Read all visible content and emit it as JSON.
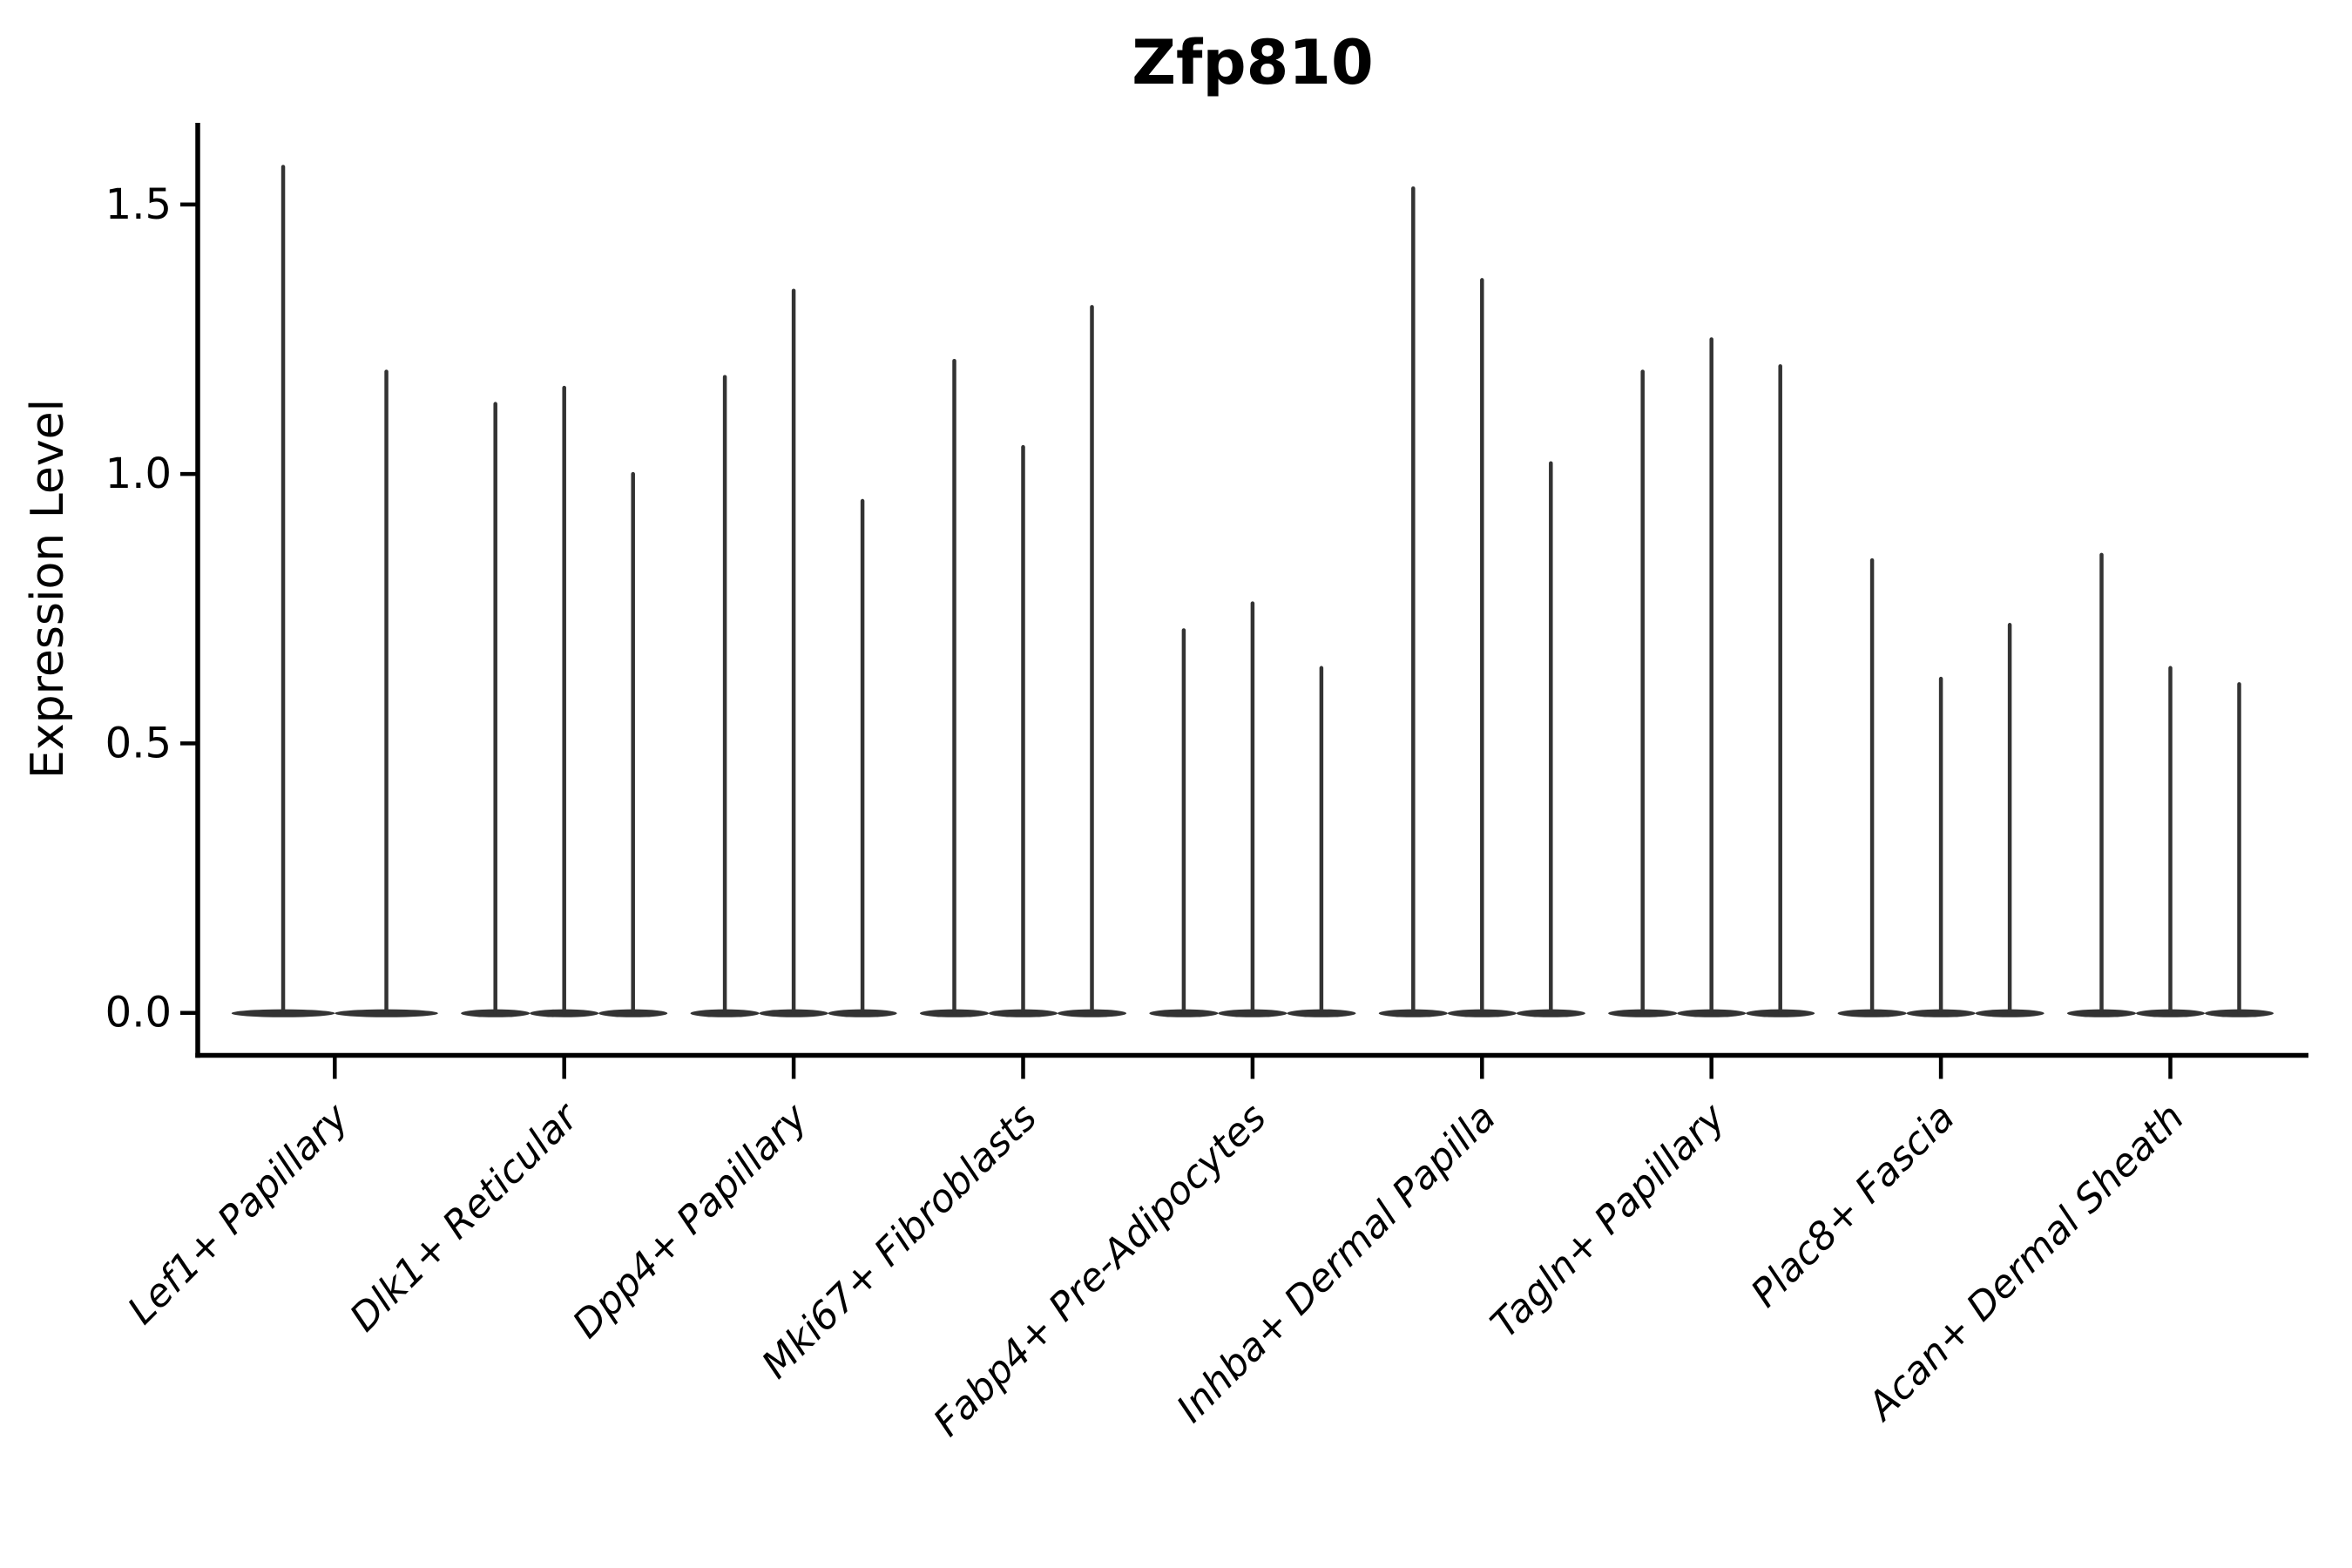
{
  "chart_data": {
    "type": "violin",
    "title": "Zfp810",
    "xlabel": "",
    "ylabel": "Expression Level",
    "yticks": [
      0.0,
      0.5,
      1.0,
      1.5
    ],
    "ytick_labels": [
      "0.0",
      "0.5",
      "1.0",
      "1.5"
    ],
    "ylim": [
      -0.08,
      1.66
    ],
    "grid": false,
    "legend_position": "none",
    "categories": [
      "Lef1+ Papillary",
      "Dlk1+ Reticular",
      "Dpp4+ Papillary",
      "Mki67+ Fibroblasts",
      "Fabp4+ Pre-Adipocytes",
      "Inhba+ Dermal Papilla",
      "Tagln+ Papillary",
      "Plac8+ Fascia",
      "Acan+ Dermal Sheath"
    ],
    "groups": [
      {
        "category": "Lef1+ Papillary",
        "violin_max_values": [
          1.57,
          1.19
        ]
      },
      {
        "category": "Dlk1+ Reticular",
        "violin_max_values": [
          1.13,
          1.16,
          1.0
        ]
      },
      {
        "category": "Dpp4+ Papillary",
        "violin_max_values": [
          1.18,
          1.34,
          0.95
        ]
      },
      {
        "category": "Mki67+ Fibroblasts",
        "violin_max_values": [
          1.21,
          1.05,
          1.31
        ]
      },
      {
        "category": "Fabp4+ Pre-Adipocytes",
        "violin_max_values": [
          0.71,
          0.76,
          0.64
        ]
      },
      {
        "category": "Inhba+ Dermal Papilla",
        "violin_max_values": [
          1.53,
          1.36,
          1.02
        ]
      },
      {
        "category": "Tagln+ Papillary",
        "violin_max_values": [
          1.19,
          1.25,
          1.2
        ]
      },
      {
        "category": "Plac8+ Fascia",
        "violin_max_values": [
          0.84,
          0.62,
          0.72
        ]
      },
      {
        "category": "Acan+ Dermal Sheath",
        "violin_max_values": [
          0.85,
          0.64,
          0.61
        ]
      }
    ],
    "violin_baseline_value": 0.0,
    "colors": {
      "violin": "#333333",
      "axis": "#000000",
      "text": "#000000",
      "background": "#ffffff"
    }
  }
}
